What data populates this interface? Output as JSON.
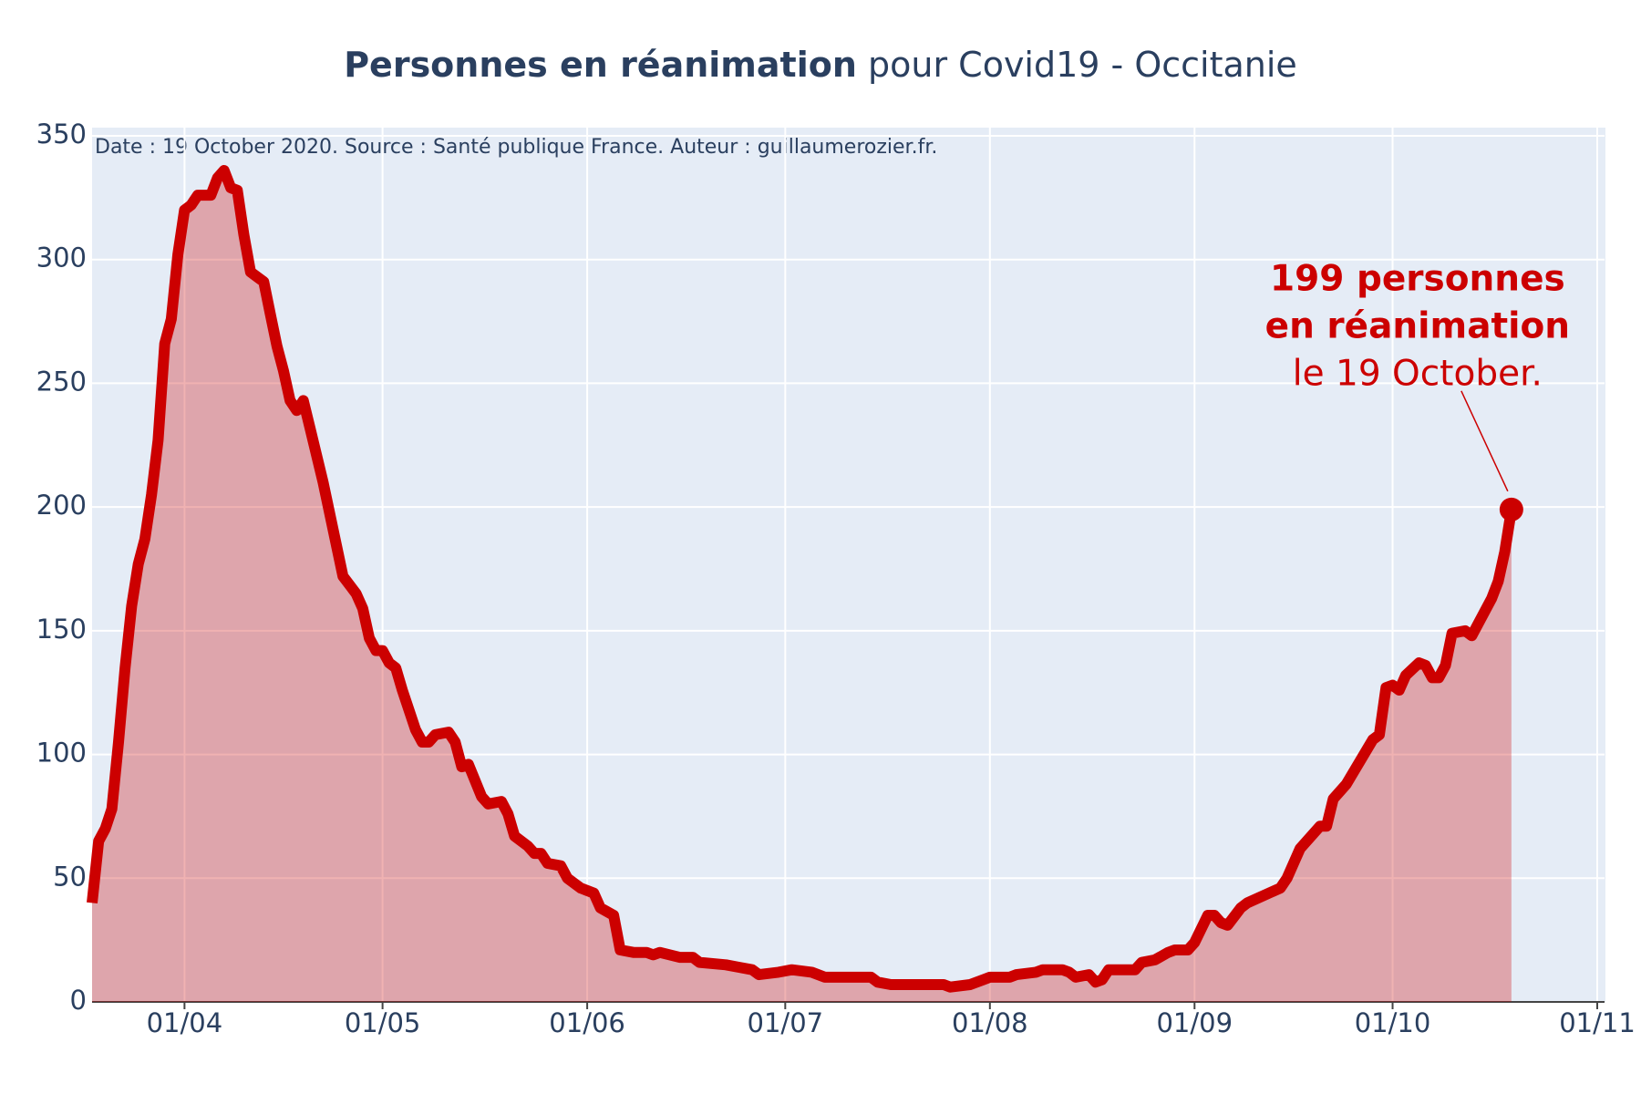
{
  "chart_data": {
    "type": "line",
    "title": {
      "bold": "Personnes en réanimation",
      "rest": "pour Covid19 - Occitanie"
    },
    "note": "Date : 19 October 2020. Source : Santé publique France. Auteur : guillaumerozier.fr.",
    "annotation": [
      "199 personnes",
      "en réanimation",
      "le 19 October."
    ],
    "color": "#cc0000",
    "fill_color": "#cc0000",
    "grid": true,
    "xlim": [
      "18/03",
      "01/11"
    ],
    "xticks": [
      "01/04",
      "01/05",
      "01/06",
      "01/07",
      "01/08",
      "01/09",
      "01/10",
      "01/11"
    ],
    "ylim": [
      0,
      350
    ],
    "yticks": [
      0,
      50,
      100,
      150,
      200,
      250,
      300,
      350
    ],
    "x": [
      "18/03",
      "19/03",
      "20/03",
      "21/03",
      "22/03",
      "23/03",
      "24/03",
      "25/03",
      "26/03",
      "27/03",
      "28/03",
      "29/03",
      "30/03",
      "31/03",
      "01/04",
      "02/04",
      "03/04",
      "04/04",
      "05/04",
      "06/04",
      "07/04",
      "08/04",
      "09/04",
      "10/04",
      "11/04",
      "12/04",
      "13/04",
      "14/04",
      "15/04",
      "16/04",
      "17/04",
      "18/04",
      "19/04",
      "20/04",
      "22/04",
      "25/04",
      "27/04",
      "28/04",
      "29/04",
      "30/04",
      "01/05",
      "02/05",
      "03/05",
      "04/05",
      "06/05",
      "07/05",
      "08/05",
      "09/05",
      "11/05",
      "12/05",
      "13/05",
      "14/05",
      "16/05",
      "17/05",
      "19/05",
      "20/05",
      "21/05",
      "23/05",
      "24/05",
      "25/05",
      "26/05",
      "28/05",
      "29/05",
      "31/05",
      "01/06",
      "02/06",
      "03/06",
      "05/06",
      "06/06",
      "08/06",
      "10/06",
      "11/06",
      "12/06",
      "15/06",
      "17/06",
      "18/06",
      "22/06",
      "24/06",
      "26/06",
      "27/06",
      "30/06",
      "02/07",
      "05/07",
      "07/07",
      "14/07",
      "15/07",
      "17/07",
      "25/07",
      "26/07",
      "29/07",
      "31/07",
      "01/08",
      "04/08",
      "05/08",
      "08/08",
      "09/08",
      "12/08",
      "13/08",
      "14/08",
      "16/08",
      "17/08",
      "18/08",
      "19/08",
      "23/08",
      "24/08",
      "26/08",
      "28/08",
      "29/08",
      "31/08",
      "01/09",
      "03/09",
      "04/09",
      "05/09",
      "06/09",
      "08/09",
      "09/09",
      "14/09",
      "15/09",
      "17/09",
      "20/09",
      "21/09",
      "22/09",
      "24/09",
      "28/09",
      "29/09",
      "30/09",
      "01/10",
      "02/10",
      "03/10",
      "05/10",
      "06/10",
      "07/10",
      "08/10",
      "09/10",
      "10/10",
      "12/10",
      "13/10",
      "16/10",
      "17/10",
      "18/10",
      "19/10"
    ],
    "values": [
      40,
      65,
      70,
      78,
      105,
      135,
      160,
      177,
      187,
      205,
      227,
      266,
      276,
      302,
      320,
      322,
      326,
      326,
      326,
      333,
      336,
      329,
      328,
      310,
      295,
      293,
      291,
      278,
      265,
      255,
      243,
      239,
      243,
      232,
      210,
      172,
      165,
      159,
      147,
      142,
      142,
      137,
      135,
      126,
      110,
      105,
      105,
      108,
      109,
      105,
      95,
      96,
      83,
      80,
      81,
      76,
      67,
      63,
      60,
      60,
      56,
      55,
      50,
      46,
      45,
      44,
      38,
      35,
      21,
      20,
      20,
      19,
      20,
      18,
      18,
      16,
      15,
      14,
      13,
      11,
      12,
      13,
      12,
      10,
      10,
      8,
      7,
      7,
      6,
      7,
      9,
      10,
      10,
      11,
      12,
      13,
      13,
      12,
      10,
      11,
      8,
      9,
      13,
      13,
      16,
      17,
      20,
      21,
      21,
      24,
      35,
      35,
      32,
      31,
      38,
      40,
      46,
      50,
      62,
      71,
      71,
      82,
      88,
      106,
      108,
      127,
      128,
      126,
      132,
      137,
      136,
      131,
      131,
      136,
      149,
      150,
      148,
      163,
      170,
      182,
      199
    ]
  }
}
